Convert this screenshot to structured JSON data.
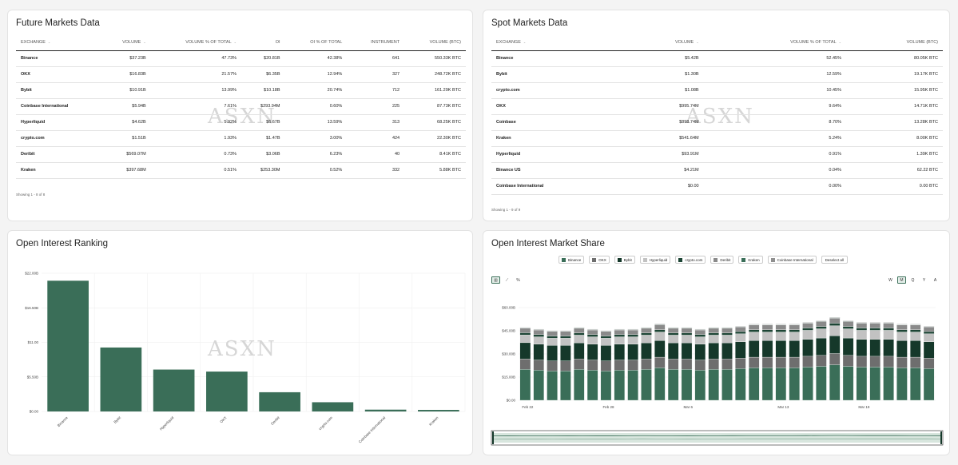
{
  "futures": {
    "title": "Future Markets Data",
    "watermark": "ASXN",
    "columns": [
      "EXCHANGE",
      "VOLUME",
      "VOLUME % OF TOTAL",
      "OI",
      "OI % OF TOTAL",
      "INSTRUMENT",
      "VOLUME (BTC)"
    ],
    "sort_icon": "⌄",
    "rows": [
      [
        "Binance",
        "$37.23B",
        "47.73%",
        "$20.81B",
        "42.38%",
        "641",
        "550.33K BTC"
      ],
      [
        "OKX",
        "$16.83B",
        "21.57%",
        "$6.35B",
        "12.94%",
        "327",
        "248.72K BTC"
      ],
      [
        "Bybit",
        "$10.91B",
        "13.99%",
        "$10.18B",
        "20.74%",
        "712",
        "161.29K BTC"
      ],
      [
        "Coinbase International",
        "$5.94B",
        "7.61%",
        "$293.94M",
        "0.60%",
        "225",
        "87.73K BTC"
      ],
      [
        "Hyperliquid",
        "$4.62B",
        "5.92%",
        "$6.67B",
        "13.59%",
        "313",
        "68.25K BTC"
      ],
      [
        "crypto.com",
        "$1.51B",
        "1.93%",
        "$1.47B",
        "3.00%",
        "424",
        "22.30K BTC"
      ],
      [
        "Deribit",
        "$569.07M",
        "0.73%",
        "$3.06B",
        "6.23%",
        "40",
        "8.41K BTC"
      ],
      [
        "Kraken",
        "$397.68M",
        "0.51%",
        "$253.30M",
        "0.52%",
        "332",
        "5.88K BTC"
      ]
    ],
    "showing": "Showing 1 - 8 of 8"
  },
  "spot": {
    "title": "Spot Markets Data",
    "watermark": "ASXN",
    "columns": [
      "EXCHANGE",
      "VOLUME",
      "VOLUME % OF TOTAL",
      "VOLUME (BTC)"
    ],
    "sort_icon": "⌄",
    "rows": [
      [
        "Binance",
        "$5.42B",
        "52.45%",
        "80.05K BTC"
      ],
      [
        "Bybit",
        "$1.30B",
        "12.59%",
        "19.17K BTC"
      ],
      [
        "crypto.com",
        "$1.08B",
        "10.45%",
        "15.95K BTC"
      ],
      [
        "OKX",
        "$995.74M",
        "9.64%",
        "14.71K BTC"
      ],
      [
        "Coinbase",
        "$898.74M",
        "8.70%",
        "13.28K BTC"
      ],
      [
        "Kraken",
        "$541.64M",
        "5.24%",
        "8.00K BTC"
      ],
      [
        "Hyperliquid",
        "$93.91M",
        "0.91%",
        "1.39K BTC"
      ],
      [
        "Binance US",
        "$4.21M",
        "0.04%",
        "62.22 BTC"
      ],
      [
        "Coinbase International",
        "$0.00",
        "0.00%",
        "0.00 BTC"
      ]
    ],
    "showing": "Showing 1 - 9 of 9"
  },
  "oi_ranking": {
    "title": "Open Interest Ranking",
    "watermark": "ASXN",
    "color": "#3a6e58"
  },
  "oi_share": {
    "title": "Open Interest Market Share",
    "legend": [
      {
        "name": "Binance",
        "color": "#3a6e58"
      },
      {
        "name": "OKX",
        "color": "#6e6e6e"
      },
      {
        "name": "Bybit",
        "color": "#15382a"
      },
      {
        "name": "Hyperliquid",
        "color": "#c2c2c2"
      },
      {
        "name": "crypto.com",
        "color": "#1d4535"
      },
      {
        "name": "Deribit",
        "color": "#8a8a8a"
      },
      {
        "name": "Kraken",
        "color": "#3a6e58"
      },
      {
        "name": "Coinbase International",
        "color": "#8f8f8f"
      }
    ],
    "deselect_label": "Deselect all",
    "modes": [
      "bar-chart-icon",
      "line-chart-icon",
      "percent-icon"
    ],
    "mode_glyphs": [
      "▥",
      "⟋",
      "%"
    ],
    "timeframes": [
      "W",
      "M",
      "Q",
      "Y",
      "A"
    ],
    "active_timeframe": "M"
  },
  "chart_data": [
    {
      "type": "bar",
      "title": "Open Interest Ranking",
      "categories": [
        "Binance",
        "Bybit",
        "Hyperliquid",
        "OKX",
        "Deribit",
        "crypto.com",
        "Coinbase International",
        "Kraken"
      ],
      "values": [
        20.81,
        10.18,
        6.67,
        6.35,
        3.06,
        1.47,
        0.29,
        0.25
      ],
      "ylim": [
        0,
        22
      ],
      "yticks": [
        0,
        5.5,
        11,
        16.5,
        22
      ],
      "ytick_labels": [
        "$0.00",
        "$5.50B",
        "$11.00",
        "$16.50B",
        "$22.00B"
      ],
      "xlabel": "",
      "ylabel": ""
    },
    {
      "type": "bar",
      "stacked": true,
      "title": "Open Interest Market Share",
      "x": [
        "Feb 22",
        "Feb 23",
        "Feb 24",
        "Feb 25",
        "Feb 26",
        "Feb 27",
        "Feb 28",
        "Mar 1",
        "Mar 2",
        "Mar 3",
        "Mar 4",
        "Mar 5",
        "Mar 6",
        "Mar 7",
        "Mar 8",
        "Mar 9",
        "Mar 10",
        "Mar 11",
        "Mar 12",
        "Mar 13",
        "Mar 14",
        "Mar 15",
        "Mar 16",
        "Mar 17",
        "Mar 18",
        "Mar 19",
        "Mar 20",
        "Mar 21",
        "Mar 22",
        "Mar 23",
        "Mar 24"
      ],
      "xtick_labels": [
        "Feb 22",
        "Feb 28",
        "Mar 6",
        "Mar 13",
        "Mar 19"
      ],
      "xtick_index": [
        0,
        6,
        12,
        19,
        25
      ],
      "ylim": [
        0,
        60
      ],
      "yticks": [
        0,
        15,
        30,
        45,
        60
      ],
      "ytick_labels": [
        "$0.00",
        "$15.00B",
        "$30.00B",
        "$45.00B",
        "$60.00B"
      ],
      "series": [
        {
          "name": "Binance",
          "values": [
            20,
            19.5,
            19,
            19,
            20,
            19.5,
            19,
            19.5,
            19.5,
            20,
            21,
            20,
            20,
            19.5,
            20,
            20,
            20.5,
            21,
            21,
            21,
            21,
            21.5,
            22,
            23,
            22,
            21.5,
            21.5,
            21.5,
            21,
            21,
            20.5
          ]
        },
        {
          "name": "OKX",
          "values": [
            6.8,
            6.6,
            6.5,
            6.5,
            6.7,
            6.6,
            6.5,
            6.6,
            6.6,
            6.7,
            6.9,
            6.7,
            6.7,
            6.6,
            6.7,
            6.7,
            6.8,
            6.9,
            6.9,
            6.9,
            6.9,
            7,
            7.1,
            7.3,
            7.1,
            7,
            7,
            7,
            6.9,
            6.9,
            6.8
          ]
        },
        {
          "name": "Bybit",
          "values": [
            10.5,
            10.2,
            10,
            10,
            10.5,
            10.2,
            10,
            10.2,
            10.2,
            10.5,
            10.8,
            10.5,
            10.5,
            10.2,
            10.5,
            10.5,
            10.6,
            10.8,
            10.8,
            10.8,
            10.8,
            11,
            11.2,
            11.5,
            11.2,
            11,
            11,
            11,
            10.8,
            10.8,
            10.6
          ]
        },
        {
          "name": "Hyperliquid",
          "values": [
            5,
            4.8,
            4.7,
            4.7,
            5,
            4.8,
            4.7,
            4.8,
            4.8,
            5,
            5.5,
            5,
            5,
            4.8,
            5,
            5,
            5.2,
            5.5,
            5.5,
            5.5,
            5.5,
            5.8,
            6,
            6.5,
            6,
            5.8,
            5.8,
            5.8,
            5.5,
            5.5,
            5.2
          ]
        },
        {
          "name": "crypto.com",
          "values": [
            1.4,
            1.4,
            1.4,
            1.4,
            1.4,
            1.4,
            1.4,
            1.4,
            1.4,
            1.4,
            1.5,
            1.4,
            1.4,
            1.4,
            1.4,
            1.4,
            1.4,
            1.5,
            1.5,
            1.5,
            1.5,
            1.5,
            1.5,
            1.6,
            1.5,
            1.5,
            1.5,
            1.5,
            1.5,
            1.5,
            1.4
          ]
        },
        {
          "name": "Deribit",
          "values": [
            3,
            3,
            3,
            3,
            3,
            3,
            3,
            3,
            3,
            3,
            3.2,
            3,
            3,
            3,
            3,
            3,
            3,
            3.1,
            3.1,
            3.1,
            3.1,
            3.1,
            3.2,
            3.3,
            3.2,
            3.1,
            3.1,
            3.1,
            3.1,
            3.1,
            3
          ]
        },
        {
          "name": "Kraken",
          "values": [
            0.25,
            0.25,
            0.25,
            0.25,
            0.25,
            0.25,
            0.25,
            0.25,
            0.25,
            0.25,
            0.26,
            0.25,
            0.25,
            0.25,
            0.25,
            0.25,
            0.25,
            0.26,
            0.26,
            0.26,
            0.26,
            0.26,
            0.26,
            0.27,
            0.26,
            0.26,
            0.26,
            0.26,
            0.26,
            0.26,
            0.25
          ]
        },
        {
          "name": "Coinbase International",
          "values": [
            0.3,
            0.3,
            0.3,
            0.3,
            0.3,
            0.3,
            0.3,
            0.3,
            0.3,
            0.3,
            0.3,
            0.3,
            0.3,
            0.3,
            0.3,
            0.3,
            0.3,
            0.3,
            0.3,
            0.3,
            0.3,
            0.3,
            0.3,
            0.3,
            0.3,
            0.3,
            0.3,
            0.3,
            0.3,
            0.3,
            0.3
          ]
        }
      ]
    }
  ]
}
